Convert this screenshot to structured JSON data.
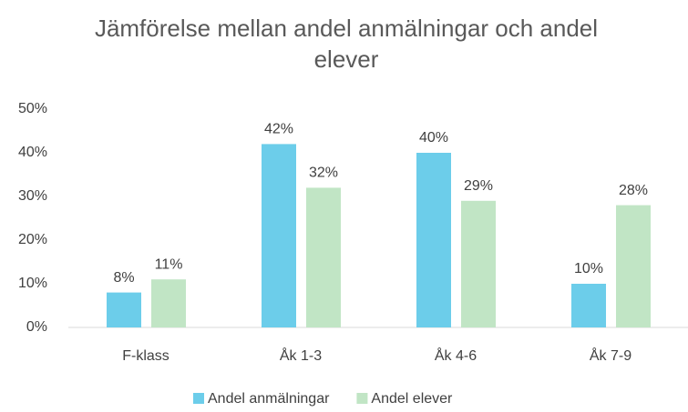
{
  "chart_data": {
    "type": "bar",
    "title": "Jämförelse mellan andel anmälningar och andel elever",
    "categories": [
      "F-klass",
      "Åk 1-3",
      "Åk 4-6",
      "Åk 7-9"
    ],
    "series": [
      {
        "name": "Andel anmälningar",
        "color": "#6ccdea",
        "values": [
          8,
          42,
          40,
          10
        ],
        "value_labels": [
          "8%",
          "42%",
          "40%",
          "10%"
        ]
      },
      {
        "name": "Andel elever",
        "color": "#c1e5c5",
        "values": [
          11,
          32,
          29,
          28
        ],
        "value_labels": [
          "11%",
          "32%",
          "29%",
          "28%"
        ]
      }
    ],
    "ylim": [
      0,
      50
    ],
    "yticks": [
      {
        "value": 0,
        "label": "0%"
      },
      {
        "value": 10,
        "label": "10%"
      },
      {
        "value": 20,
        "label": "20%"
      },
      {
        "value": 30,
        "label": "30%"
      },
      {
        "value": 40,
        "label": "40%"
      },
      {
        "value": 50,
        "label": "50%"
      }
    ],
    "grid": false,
    "legend": "bottom"
  }
}
